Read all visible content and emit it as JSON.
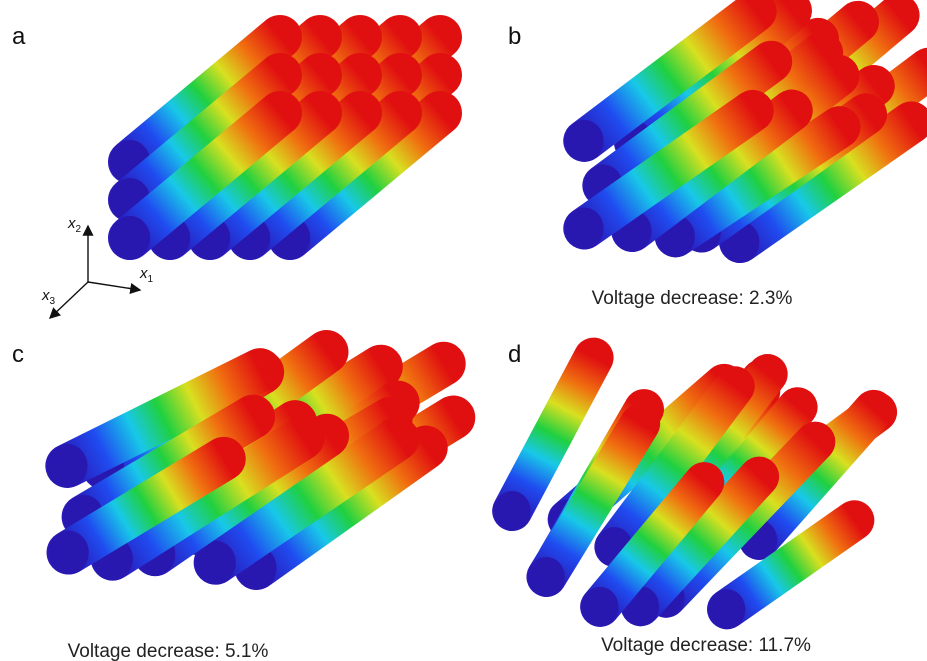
{
  "panels": [
    {
      "label": "a"
    },
    {
      "label": "b",
      "caption": "Voltage decrease: 2.3%"
    },
    {
      "label": "c",
      "caption": "Voltage decrease: 5.1%"
    },
    {
      "label": "d",
      "caption": "Voltage decrease: 11.7%"
    }
  ],
  "axes": [
    {
      "symbol": "x",
      "subscript": "1"
    },
    {
      "symbol": "x",
      "subscript": "2"
    },
    {
      "symbol": "x",
      "subscript": "3"
    }
  ]
}
